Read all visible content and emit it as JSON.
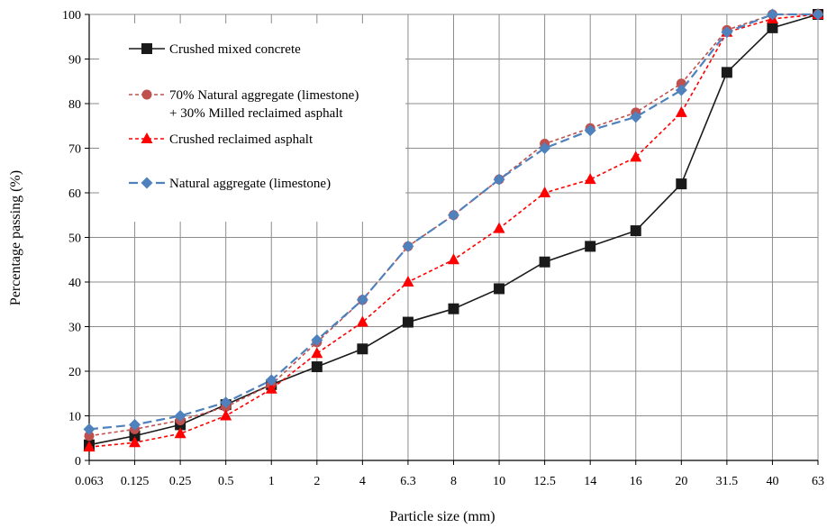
{
  "chart_data": {
    "type": "line",
    "xlabel": "Particle size (mm)",
    "ylabel": "Percentage passing (%)",
    "x_scale": "categorical (sieve sizes)",
    "categories": [
      "0.063",
      "0.125",
      "0.25",
      "0.5",
      "1",
      "2",
      "4",
      "6.3",
      "8",
      "10",
      "12.5",
      "14",
      "16",
      "20",
      "31.5",
      "40",
      "63"
    ],
    "yticks": [
      "0",
      "10",
      "20",
      "30",
      "40",
      "50",
      "60",
      "70",
      "80",
      "90",
      "100"
    ],
    "ylim": [
      0,
      100
    ],
    "grid": true,
    "legend_placement": "upper-left",
    "series": [
      {
        "name": "Crushed mixed concrete",
        "color": "#1a1a1a",
        "marker": "square",
        "dash": "solid",
        "values": [
          3.5,
          5.5,
          8,
          12.5,
          17,
          21,
          25,
          31,
          34,
          38.5,
          44.5,
          48,
          51.5,
          62,
          87,
          97,
          100
        ]
      },
      {
        "name": "70% Natural aggregate (limestone)",
        "name_line2": "+ 30% Milled reclaimed asphalt",
        "color": "#c0504d",
        "marker": "circle",
        "dash": "dashed",
        "values": [
          5.5,
          7,
          9,
          12,
          17,
          26.5,
          36,
          48,
          55,
          63,
          71,
          74.5,
          78,
          84.5,
          96.5,
          100,
          100
        ]
      },
      {
        "name": "Crushed reclaimed asphalt",
        "color": "#ff0000",
        "marker": "triangle",
        "dash": "dashed",
        "values": [
          3,
          4,
          6,
          10,
          16,
          24,
          31,
          40,
          45,
          52,
          60,
          63,
          68,
          78,
          96,
          99,
          100
        ]
      },
      {
        "name": "Natural aggregate (limestone)",
        "color": "#4f81bd",
        "marker": "diamond",
        "dash": "dashed",
        "values": [
          7,
          8,
          10,
          13,
          18,
          27,
          36,
          48,
          55,
          63,
          70,
          74,
          77,
          83,
          96,
          100,
          100
        ]
      }
    ]
  }
}
